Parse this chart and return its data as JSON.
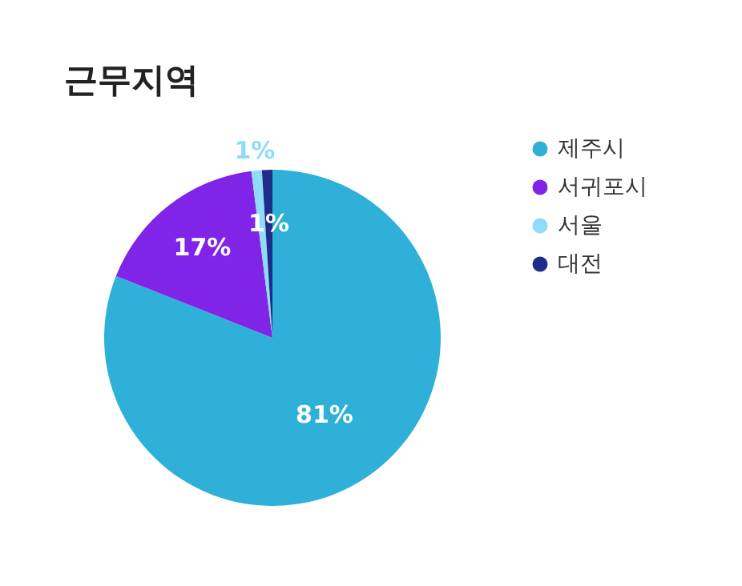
{
  "chart_data": {
    "type": "pie",
    "title": "근무지역",
    "categories": [
      "제주시",
      "서귀포시",
      "서울",
      "대전"
    ],
    "values": [
      81,
      17,
      1,
      1
    ],
    "colors": [
      "#2eb0d8",
      "#8024e8",
      "#8fdcf8",
      "#1e2d8c"
    ],
    "value_labels": [
      "81%",
      "17%",
      "1%",
      "1%"
    ],
    "legend": "right"
  }
}
